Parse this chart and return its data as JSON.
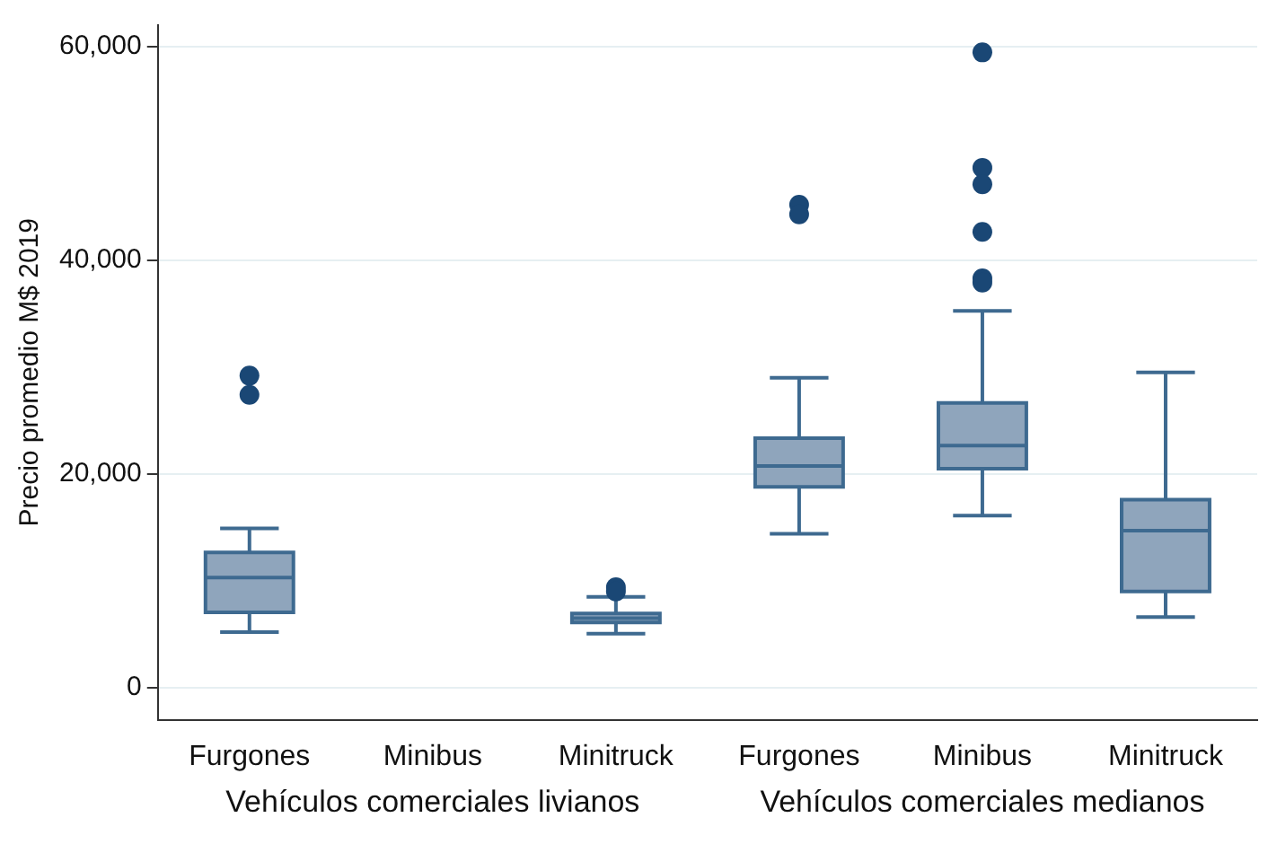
{
  "chart_data": {
    "type": "box",
    "ylabel": "Precio promedio M$ 2019",
    "categories": [
      "Furgones",
      "Minibus",
      "Minitruck",
      "Furgones",
      "Minibus",
      "Minitruck"
    ],
    "annotations": [
      "Vehículos comerciales livianos",
      "Vehículos comerciales medianos"
    ],
    "ylim": [
      -3000,
      62000
    ],
    "yticks": [
      {
        "value": 0,
        "label": "0"
      },
      {
        "value": 20000,
        "label": "20,000"
      },
      {
        "value": 40000,
        "label": "40,000"
      },
      {
        "value": 60000,
        "label": "60,000"
      }
    ],
    "grid": "y",
    "series": [
      {
        "color": "#8fa5bc",
        "boxes": [
          {
            "low": 5200,
            "q1": 7050,
            "median": 10300,
            "q3": 12650,
            "high": 14900,
            "outliers": [
              29200,
              27400
            ]
          },
          null,
          {
            "low": 5050,
            "q1": 6100,
            "median": 6500,
            "q3": 6950,
            "high": 8500,
            "outliers": [
              9400,
              9000
            ]
          },
          {
            "low": 14400,
            "q1": 18800,
            "median": 20750,
            "q3": 23350,
            "high": 29000,
            "outliers": [
              45200,
              44300
            ]
          },
          {
            "low": 16100,
            "q1": 20500,
            "median": 22650,
            "q3": 26650,
            "high": 35250,
            "outliers": [
              59450,
              48650,
              47100,
              42650,
              38300,
              37900
            ]
          },
          {
            "low": 6600,
            "q1": 9000,
            "median": 14700,
            "q3": 17600,
            "high": 29500
          }
        ]
      }
    ]
  }
}
